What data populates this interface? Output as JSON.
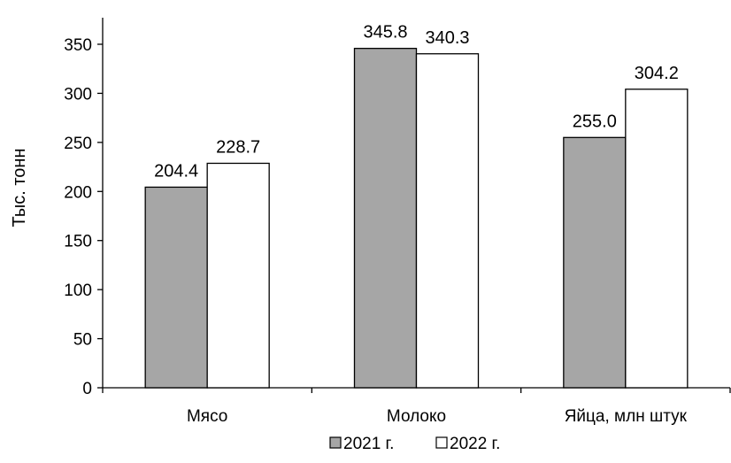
{
  "chart_data": {
    "type": "bar",
    "categories": [
      "Мясо",
      "Молоко",
      "Яйца, млн штук"
    ],
    "series": [
      {
        "name": "2021 г.",
        "values": [
          204.4,
          345.8,
          255.0
        ],
        "labels": [
          "204.4",
          "345.8",
          "255.0"
        ],
        "color": "#a6a6a6"
      },
      {
        "name": "2022 г.",
        "values": [
          228.7,
          340.3,
          304.2
        ],
        "labels": [
          "228.7",
          "340.3",
          "304.2"
        ],
        "color": "#ffffff"
      }
    ],
    "ylabel": "Тыс. тонн",
    "ylim": [
      0,
      350
    ],
    "yticks": [
      0,
      50,
      100,
      150,
      200,
      250,
      300,
      350
    ],
    "grid": false,
    "legend": "bottom-center"
  }
}
